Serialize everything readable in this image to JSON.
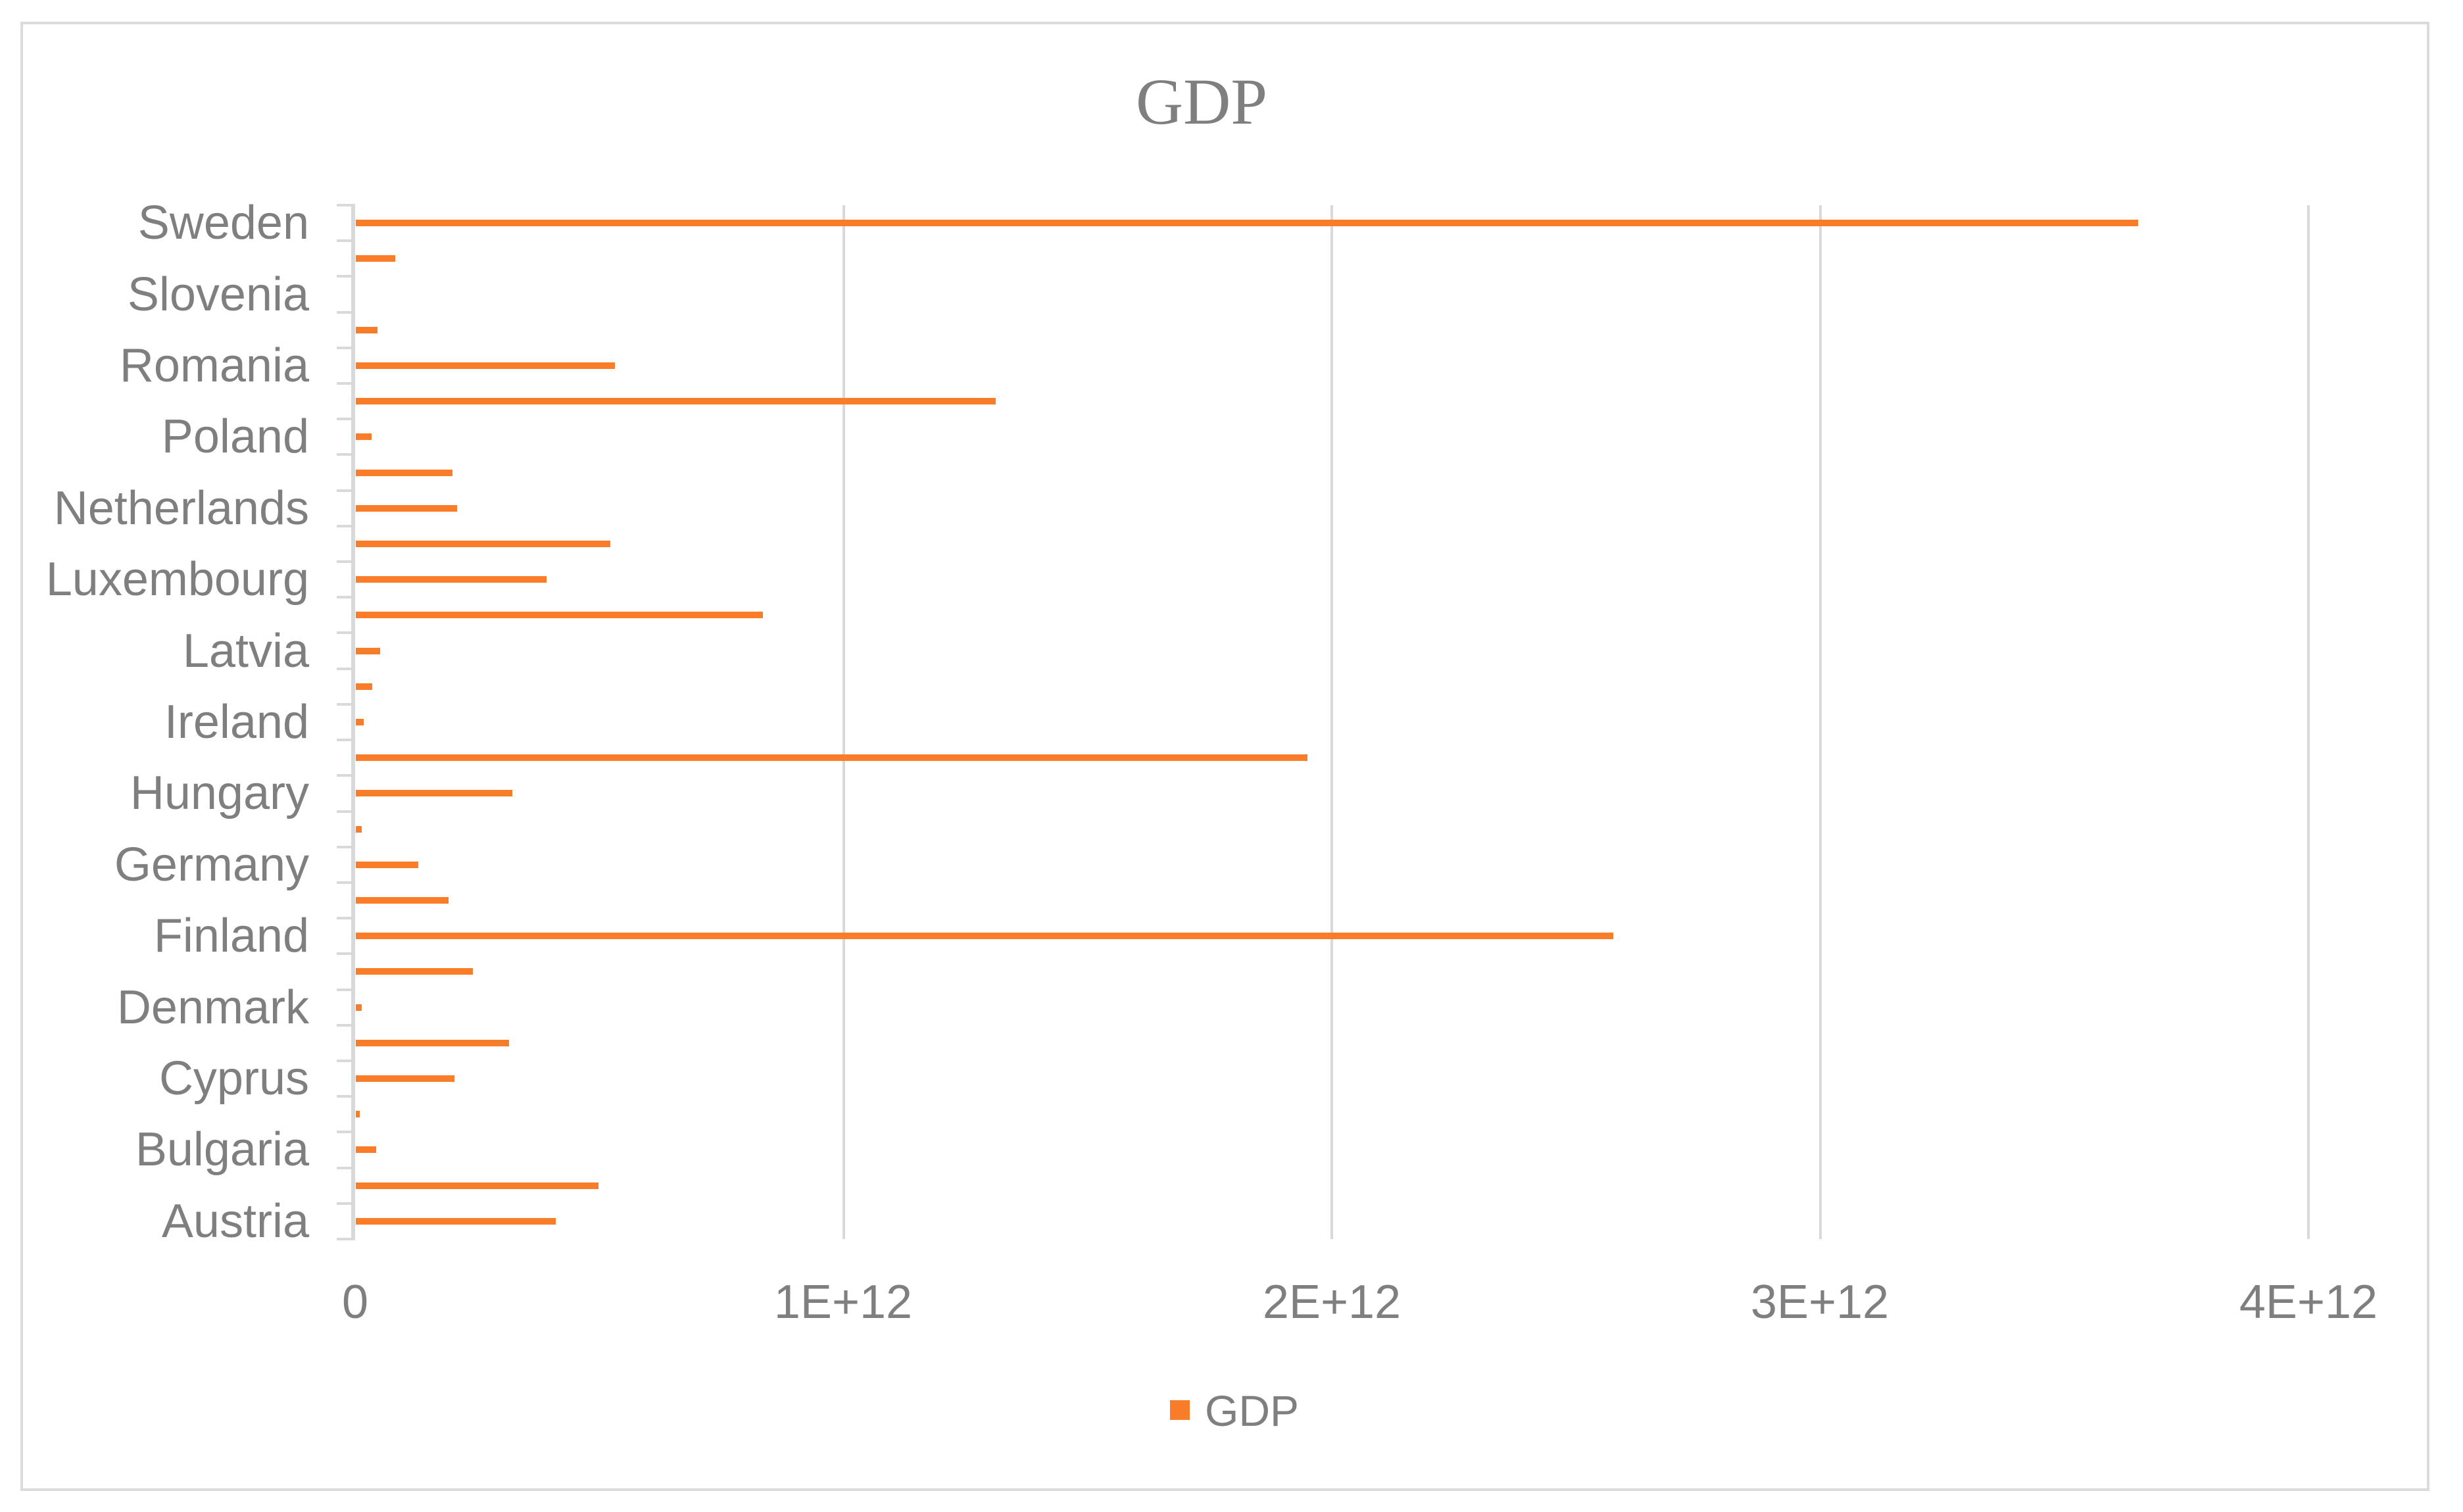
{
  "title": "GDP",
  "legend": {
    "label": "GDP"
  },
  "colors": {
    "bar": "#F97D28",
    "text": "#7F7F7F",
    "gridline": "#D9D9D9",
    "axis_line": "#D9D9D9",
    "chart_border": "#DBDBDB",
    "background": "#FFFFFF"
  },
  "chart_data": {
    "type": "bar",
    "orientation": "horizontal",
    "title": "GDP",
    "xlabel": "",
    "ylabel": "",
    "xlim": [
      0,
      4000000000000.0
    ],
    "x_tick_labels": [
      "0",
      "1E+12",
      "2E+12",
      "3E+12",
      "4E+12"
    ],
    "grid": true,
    "legend_position": "bottom-center",
    "series_name": "GDP",
    "axis_label_note": "category labels shown only on every other row",
    "rows": [
      {
        "label": "Sweden",
        "value": 3650000000000
      },
      {
        "label": "",
        "value": 81000000000
      },
      {
        "label": "Slovenia",
        "value": 0
      },
      {
        "label": "",
        "value": 44000000000
      },
      {
        "label": "Romania",
        "value": 530000000000
      },
      {
        "label": "",
        "value": 1310000000000
      },
      {
        "label": "Poland",
        "value": 32000000000
      },
      {
        "label": "",
        "value": 198000000000
      },
      {
        "label": "Netherlands",
        "value": 207000000000
      },
      {
        "label": "",
        "value": 521000000000
      },
      {
        "label": "Luxembourg",
        "value": 391000000000
      },
      {
        "label": "",
        "value": 834000000000
      },
      {
        "label": "Latvia",
        "value": 50000000000
      },
      {
        "label": "",
        "value": 34000000000
      },
      {
        "label": "Ireland",
        "value": 16000000000
      },
      {
        "label": "",
        "value": 1949000000000
      },
      {
        "label": "Hungary",
        "value": 321000000000
      },
      {
        "label": "",
        "value": 12000000000
      },
      {
        "label": "Germany",
        "value": 128000000000
      },
      {
        "label": "",
        "value": 190000000000
      },
      {
        "label": "Finland",
        "value": 2575000000000
      },
      {
        "label": "",
        "value": 240000000000
      },
      {
        "label": "Denmark",
        "value": 12000000000
      },
      {
        "label": "",
        "value": 314000000000
      },
      {
        "label": "Cyprus",
        "value": 202000000000
      },
      {
        "label": "",
        "value": 8000000000
      },
      {
        "label": "Bulgaria",
        "value": 42000000000
      },
      {
        "label": "",
        "value": 497000000000
      },
      {
        "label": "Austria",
        "value": 409000000000
      }
    ]
  }
}
